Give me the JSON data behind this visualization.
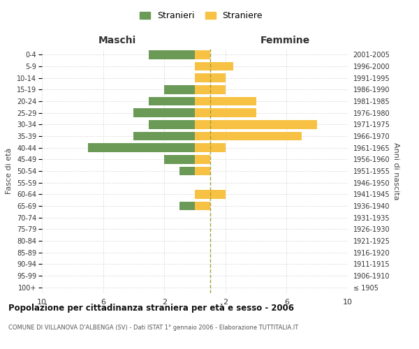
{
  "age_groups": [
    "100+",
    "95-99",
    "90-94",
    "85-89",
    "80-84",
    "75-79",
    "70-74",
    "65-69",
    "60-64",
    "55-59",
    "50-54",
    "45-49",
    "40-44",
    "35-39",
    "30-34",
    "25-29",
    "20-24",
    "15-19",
    "10-14",
    "5-9",
    "0-4"
  ],
  "birth_years": [
    "≤ 1905",
    "1906-1910",
    "1911-1915",
    "1916-1920",
    "1921-1925",
    "1926-1930",
    "1931-1935",
    "1936-1940",
    "1941-1945",
    "1946-1950",
    "1951-1955",
    "1956-1960",
    "1961-1965",
    "1966-1970",
    "1971-1975",
    "1976-1980",
    "1981-1985",
    "1986-1990",
    "1991-1995",
    "1996-2000",
    "2001-2005"
  ],
  "maschi": [
    0,
    0,
    0,
    0,
    0,
    0,
    0,
    1,
    0,
    0,
    1,
    2,
    7,
    4,
    3,
    4,
    3,
    2,
    0,
    0,
    3
  ],
  "femmine": [
    0,
    0,
    0,
    0,
    0,
    0,
    0,
    1,
    2,
    0,
    1,
    1,
    2,
    7,
    8,
    4,
    4,
    2,
    2,
    2.5,
    1
  ],
  "male_color": "#6b9a57",
  "female_color": "#f7c244",
  "dashed_line_color": "#9a9a30",
  "grid_color": "#cccccc",
  "bg_color": "#ffffff",
  "title": "Popolazione per cittadinanza straniera per età e sesso - 2006",
  "subtitle": "COMUNE DI VILLANOVA D'ALBENGA (SV) - Dati ISTAT 1° gennaio 2006 - Elaborazione TUTTITALIA.IT",
  "xlabel_left": "Maschi",
  "xlabel_right": "Femmine",
  "ylabel_left": "Fasce di età",
  "ylabel_right": "Anni di nascita",
  "legend_maschi": "Stranieri",
  "legend_femmine": "Straniere",
  "xlim": 10,
  "bar_height": 0.75
}
